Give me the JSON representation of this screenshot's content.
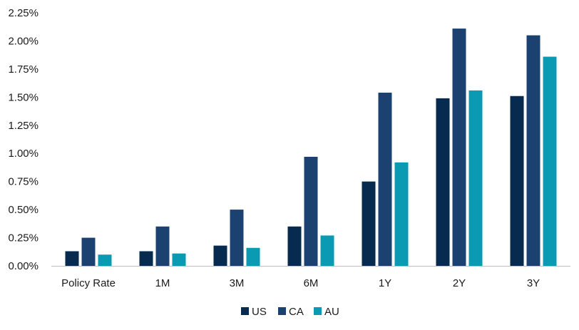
{
  "chart_data": {
    "type": "bar",
    "title": "",
    "xlabel": "",
    "ylabel": "",
    "categories": [
      "Policy Rate",
      "1M",
      "3M",
      "6M",
      "1Y",
      "2Y",
      "3Y"
    ],
    "series": [
      {
        "name": "US",
        "color": "#062b4f",
        "values": [
          0.13,
          0.13,
          0.18,
          0.35,
          0.75,
          1.49,
          1.51
        ]
      },
      {
        "name": "CA",
        "color": "#1a416f",
        "values": [
          0.25,
          0.35,
          0.5,
          0.97,
          1.54,
          2.11,
          2.05
        ]
      },
      {
        "name": "AU",
        "color": "#0a9bb2",
        "values": [
          0.1,
          0.11,
          0.16,
          0.27,
          0.92,
          1.56,
          1.86
        ]
      }
    ],
    "ylim": [
      0,
      2.25
    ],
    "y_ticks": [
      "0.00%",
      "0.25%",
      "0.50%",
      "0.75%",
      "1.00%",
      "1.25%",
      "1.50%",
      "1.75%",
      "2.00%",
      "2.25%"
    ],
    "grid": false,
    "legend_position": "bottom"
  }
}
